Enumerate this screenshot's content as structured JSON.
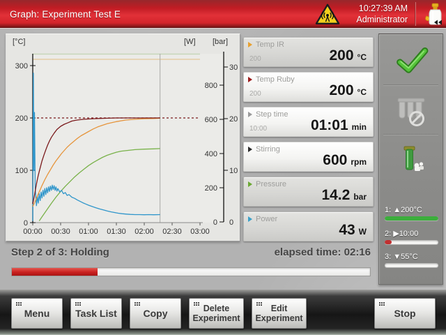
{
  "title_bar": {
    "title": "Graph: Experiment Test E",
    "time": "10:27:39 AM",
    "user": "Administrator",
    "warning_icon": "microwave-radiation-warning",
    "accent_red": "#d3242b"
  },
  "chart_data": {
    "type": "line",
    "x_unit": "minutes",
    "x_ticks_min": [
      0,
      30,
      60,
      90,
      120,
      150,
      180
    ],
    "x_tick_labels": [
      "00:00",
      "00:30",
      "01:00",
      "01:30",
      "02:00",
      "02:30",
      "03:00"
    ],
    "axis_left": {
      "label": "[°C]",
      "ticks": [
        0,
        100,
        200,
        300
      ],
      "range": [
        0,
        360
      ]
    },
    "axis_right_w": {
      "label": "[W]",
      "ticks": [
        0,
        200,
        400,
        600,
        800
      ],
      "range": [
        0,
        1000
      ]
    },
    "axis_right_bar": {
      "label": "[bar]",
      "ticks": [
        0,
        10,
        20,
        30
      ],
      "range": [
        0,
        33
      ]
    },
    "cursor_min": 137,
    "setpoint": {
      "axis": "degC",
      "value": 200,
      "color": "#7a191b"
    },
    "limit_lines": [
      {
        "axis": "degC",
        "value": 322,
        "color": "#c6d6ba"
      },
      {
        "axis": "degC",
        "value": 312,
        "color": "#e4cda6"
      }
    ],
    "series": [
      {
        "name": "Pressure",
        "axis": "bar",
        "color": "#79b24a",
        "points": [
          [
            7,
            0.2
          ],
          [
            10,
            1.0
          ],
          [
            15,
            2.3
          ],
          [
            20,
            3.6
          ],
          [
            25,
            4.8
          ],
          [
            30,
            5.9
          ],
          [
            35,
            6.9
          ],
          [
            40,
            7.8
          ],
          [
            45,
            8.7
          ],
          [
            50,
            9.5
          ],
          [
            55,
            10.2
          ],
          [
            60,
            10.9
          ],
          [
            65,
            11.5
          ],
          [
            70,
            12.0
          ],
          [
            75,
            12.5
          ],
          [
            80,
            12.9
          ],
          [
            85,
            13.2
          ],
          [
            90,
            13.5
          ],
          [
            95,
            13.7
          ],
          [
            100,
            13.8
          ],
          [
            105,
            13.9
          ],
          [
            110,
            14.0
          ],
          [
            120,
            14.1
          ],
          [
            130,
            14.15
          ],
          [
            137,
            14.2
          ]
        ]
      },
      {
        "name": "Power",
        "axis": "W",
        "color": "#3096cb",
        "points": [
          [
            0,
            5
          ],
          [
            0.7,
            870
          ],
          [
            1.3,
            300
          ],
          [
            1.9,
            640
          ],
          [
            2.6,
            200
          ],
          [
            4,
            95
          ],
          [
            5,
            150
          ],
          [
            6,
            110
          ],
          [
            7,
            165
          ],
          [
            8,
            125
          ],
          [
            9,
            175
          ],
          [
            10,
            140
          ],
          [
            11,
            185
          ],
          [
            12,
            150
          ],
          [
            13,
            195
          ],
          [
            14,
            160
          ],
          [
            15,
            200
          ],
          [
            16,
            170
          ],
          [
            17,
            205
          ],
          [
            18,
            178
          ],
          [
            19,
            210
          ],
          [
            20,
            185
          ],
          [
            21,
            215
          ],
          [
            22,
            190
          ],
          [
            23,
            212
          ],
          [
            24,
            185
          ],
          [
            25,
            205
          ],
          [
            26,
            180
          ],
          [
            27,
            195
          ],
          [
            29,
            175
          ],
          [
            31,
            185
          ],
          [
            33,
            165
          ],
          [
            35,
            172
          ],
          [
            37,
            155
          ],
          [
            39,
            160
          ],
          [
            42,
            145
          ],
          [
            45,
            138
          ],
          [
            48,
            128
          ],
          [
            51,
            120
          ],
          [
            54,
            112
          ],
          [
            57,
            105
          ],
          [
            60,
            98
          ],
          [
            64,
            90
          ],
          [
            68,
            83
          ],
          [
            72,
            76
          ],
          [
            76,
            70
          ],
          [
            80,
            64
          ],
          [
            84,
            59
          ],
          [
            88,
            55
          ],
          [
            92,
            51
          ],
          [
            96,
            48
          ],
          [
            100,
            46
          ],
          [
            105,
            44
          ],
          [
            110,
            43
          ],
          [
            115,
            43
          ],
          [
            120,
            42
          ],
          [
            125,
            43
          ],
          [
            130,
            42
          ],
          [
            137,
            43
          ]
        ]
      },
      {
        "name": "Temp IR",
        "axis": "degC",
        "color": "#e6953c",
        "points": [
          [
            0,
            31
          ],
          [
            2,
            38
          ],
          [
            4,
            47
          ],
          [
            6,
            55
          ],
          [
            8,
            63
          ],
          [
            10,
            71
          ],
          [
            13,
            82
          ],
          [
            16,
            92
          ],
          [
            19,
            101
          ],
          [
            22,
            110
          ],
          [
            25,
            118
          ],
          [
            28,
            125
          ],
          [
            31,
            132
          ],
          [
            34,
            138
          ],
          [
            37,
            144
          ],
          [
            40,
            149
          ],
          [
            44,
            155
          ],
          [
            48,
            161
          ],
          [
            52,
            166
          ],
          [
            56,
            170
          ],
          [
            60,
            174
          ],
          [
            65,
            179
          ],
          [
            70,
            183
          ],
          [
            75,
            186
          ],
          [
            80,
            189
          ],
          [
            85,
            191
          ],
          [
            90,
            193
          ],
          [
            95,
            194.5
          ],
          [
            100,
            196
          ],
          [
            110,
            197.5
          ],
          [
            120,
            198.5
          ],
          [
            130,
            199
          ],
          [
            137,
            199.5
          ]
        ]
      },
      {
        "name": "Temp Ruby",
        "axis": "degC",
        "color": "#7a191b",
        "points": [
          [
            0,
            36
          ],
          [
            1,
            44
          ],
          [
            2,
            54
          ],
          [
            3,
            64
          ],
          [
            4,
            74
          ],
          [
            5,
            83
          ],
          [
            6,
            91
          ],
          [
            8,
            105
          ],
          [
            10,
            118
          ],
          [
            12,
            129
          ],
          [
            14,
            139
          ],
          [
            16,
            148
          ],
          [
            18,
            156
          ],
          [
            20,
            163
          ],
          [
            23,
            171
          ],
          [
            26,
            178
          ],
          [
            30,
            184
          ],
          [
            34,
            188
          ],
          [
            38,
            191
          ],
          [
            42,
            194
          ],
          [
            46,
            195.5
          ],
          [
            50,
            196.5
          ],
          [
            55,
            197.5
          ],
          [
            60,
            198
          ],
          [
            65,
            198.5
          ],
          [
            70,
            199
          ],
          [
            80,
            199.5
          ],
          [
            90,
            200
          ],
          [
            120,
            200
          ],
          [
            137,
            200
          ]
        ]
      }
    ]
  },
  "params": {
    "cards": [
      {
        "label": "Temp IR",
        "arrow_color": "#e8a02e",
        "setpoint": "200",
        "value": "200",
        "unit": "°C",
        "bright": false
      },
      {
        "label": "Temp Ruby",
        "arrow_color": "#9b1b1b",
        "setpoint": "200",
        "value": "200",
        "unit": "°C",
        "bright": true
      },
      {
        "label": "Step time",
        "arrow_color": "#9a9a9a",
        "setpoint": "10:00",
        "value": "01:01",
        "unit": "min",
        "bright": true
      },
      {
        "label": "Stirring",
        "arrow_color": "#2b2b2b",
        "setpoint": "",
        "value": "600",
        "unit": "rpm",
        "bright": true
      },
      {
        "label": "Pressure",
        "arrow_color": "#6aa833",
        "setpoint": "",
        "value": "14.2",
        "unit": "bar",
        "bright": false
      },
      {
        "label": "Power",
        "arrow_color": "#3aa0c8",
        "setpoint": "",
        "value": "43",
        "unit": "W",
        "bright": false
      }
    ]
  },
  "side_panel": {
    "icons": [
      "confirm-check",
      "rack-disabled",
      "vessel-active"
    ],
    "steps": [
      {
        "prefix": "1:",
        "symbol": "▲",
        "value": "200°C",
        "fill_pct": 100,
        "fill_color": "#3cae3c"
      },
      {
        "prefix": "2:",
        "symbol": "▶",
        "value": "10:00",
        "fill_pct": 13,
        "fill_color": "#c03030"
      },
      {
        "prefix": "3:",
        "symbol": "▼",
        "value": "55°C",
        "fill_pct": 0,
        "fill_color": "#c03030"
      }
    ]
  },
  "status": {
    "step_text": "Step 2 of 3: Holding",
    "elapsed_text": "elapsed time: 02:16",
    "progress_pct": 24
  },
  "toolbar": {
    "buttons": [
      {
        "lines": [
          "Menu"
        ]
      },
      {
        "lines": [
          "Task List"
        ]
      },
      {
        "lines": [
          "Copy"
        ]
      },
      {
        "lines": [
          "Delete",
          "Experiment"
        ]
      },
      {
        "lines": [
          "Edit",
          "Experiment"
        ]
      },
      {
        "lines": [
          "Stop"
        ]
      }
    ]
  }
}
